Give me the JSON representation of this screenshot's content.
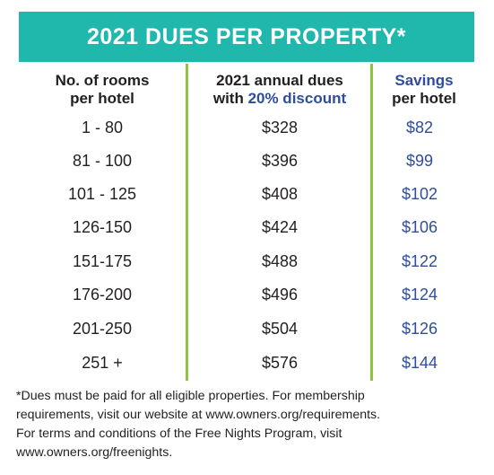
{
  "title": "2021 DUES PER PROPERTY*",
  "headers": {
    "col1_line1": "No. of rooms",
    "col1_line2": "per hotel",
    "col2_line1": "2021 annual dues",
    "col2_line2_prefix": "with ",
    "col2_line2_highlight": "20% discount",
    "col3_line1": "Savings",
    "col3_line2": "per hotel"
  },
  "rows": [
    {
      "rooms": "1 - 80",
      "dues": "$328",
      "savings": "$82"
    },
    {
      "rooms": "81 - 100",
      "dues": "$396",
      "savings": "$99"
    },
    {
      "rooms": "101 - 125",
      "dues": "$408",
      "savings": "$102"
    },
    {
      "rooms": "126-150",
      "dues": "$424",
      "savings": "$106"
    },
    {
      "rooms": "151-175",
      "dues": "$488",
      "savings": "$122"
    },
    {
      "rooms": "176-200",
      "dues": "$496",
      "savings": "$124"
    },
    {
      "rooms": "201-250",
      "dues": "$504",
      "savings": "$126"
    },
    {
      "rooms": "251 +",
      "dues": "$576",
      "savings": "$144"
    }
  ],
  "footnote": [
    "*Dues must be paid for all eligible properties. For membership",
    "requirements, visit our website at www.owners.org/requirements.",
    "For terms and conditions of the Free Nights Program, visit",
    "www.owners.org/freenights."
  ],
  "colors": {
    "banner": "#20b7ad",
    "divider": "#8cc63f",
    "accent_blue": "#2e4d9c"
  }
}
